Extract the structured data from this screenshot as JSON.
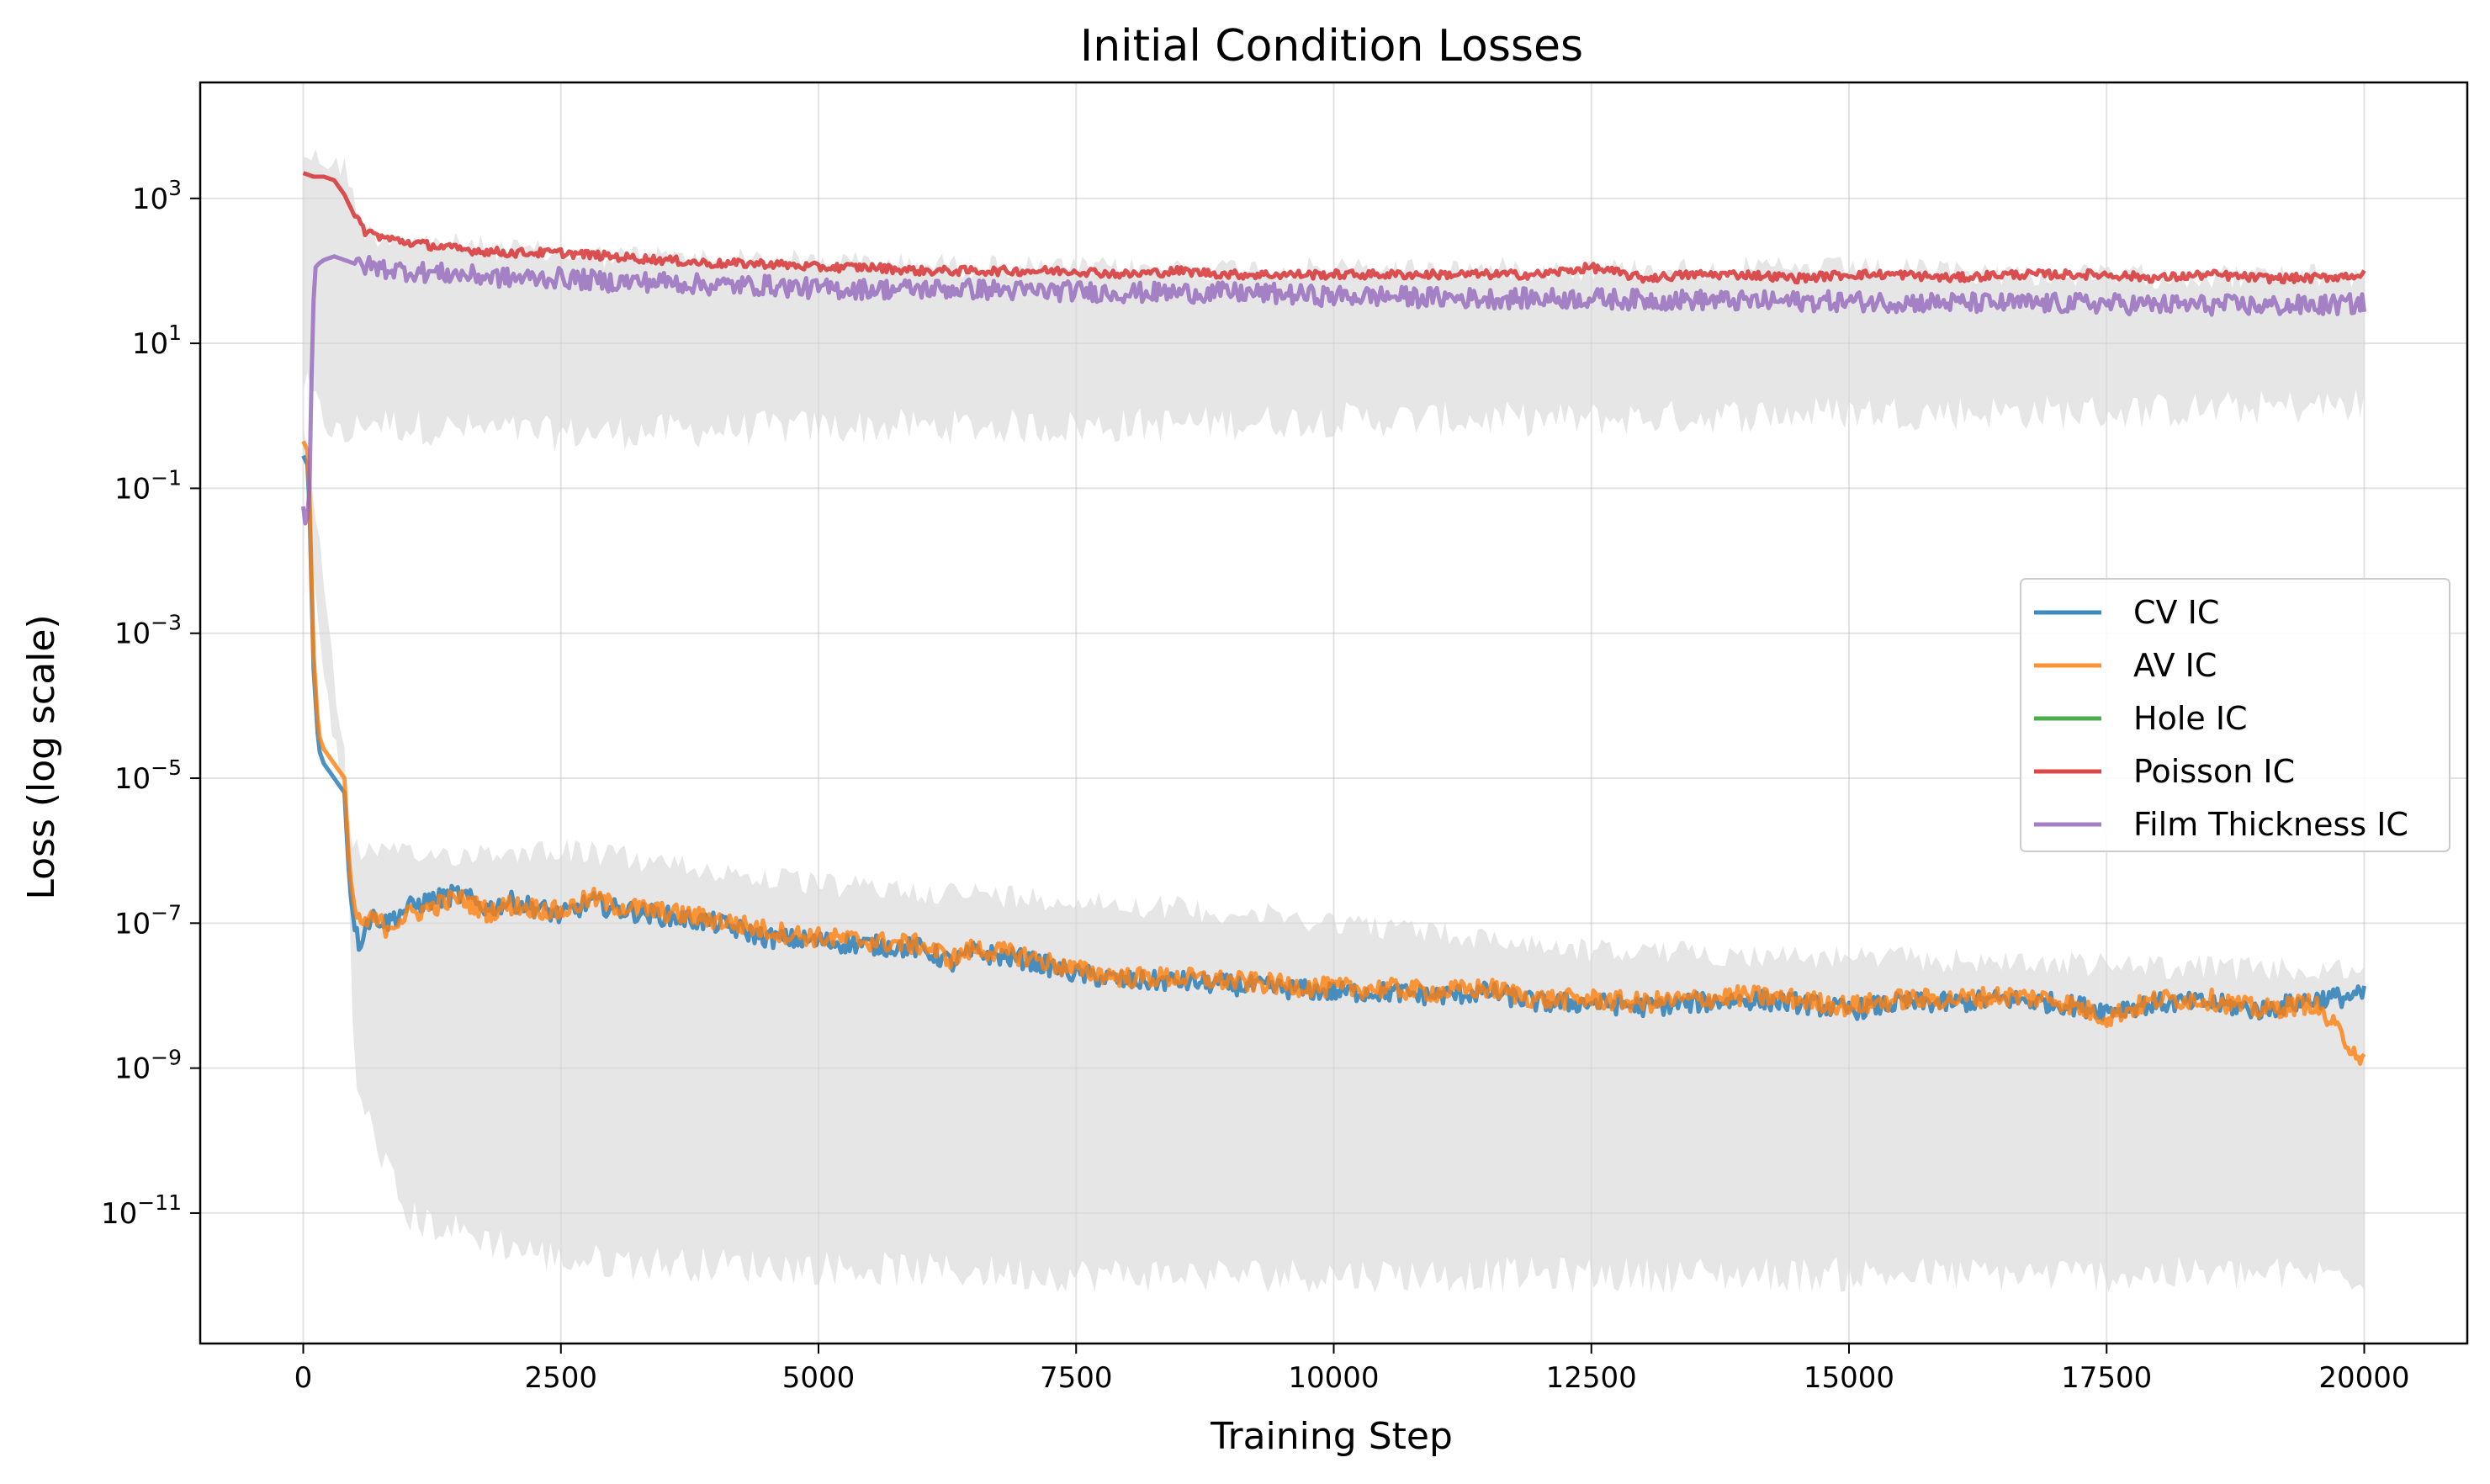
{
  "chart_data": {
    "type": "line",
    "title": "Initial Condition Losses",
    "xlabel": "Training Step",
    "ylabel": "Loss (log scale)",
    "yscale": "log",
    "xlim": [
      -1000,
      21000
    ],
    "ylim_log10": [
      -12.8,
      4.6
    ],
    "grid": true,
    "legend_position": "center-right",
    "xticks": [
      0,
      2500,
      5000,
      7500,
      10000,
      12500,
      15000,
      17500,
      20000
    ],
    "xtick_labels": [
      "0",
      "2500",
      "5000",
      "7500",
      "10000",
      "12500",
      "15000",
      "17500",
      "20000"
    ],
    "yticks_log10": [
      3,
      1,
      -1,
      -3,
      -5,
      -7,
      -9,
      -11
    ],
    "ytick_bases": [
      "10",
      "10",
      "10",
      "10",
      "10",
      "10",
      "10",
      "10"
    ],
    "ytick_exponents": [
      "3",
      "1",
      "−1",
      "−3",
      "−5",
      "−7",
      "−9",
      "−11"
    ],
    "raw_band": {
      "description": "light gray raw per-step losses behind the smoothed curves",
      "color": "#d9d9d9",
      "upper_group": {
        "x": [
          0,
          200,
          400,
          600,
          1000,
          2500,
          5000,
          7500,
          10000,
          12500,
          15000,
          17500,
          20000
        ],
        "low_log10": [
          0.2,
          -0.3,
          -0.6,
          -0.3,
          -0.4,
          -0.5,
          -0.4,
          -0.4,
          -0.3,
          -0.3,
          -0.2,
          -0.2,
          -0.1
        ],
        "high_log10": [
          3.8,
          3.7,
          3.6,
          2.7,
          2.6,
          2.4,
          2.3,
          2.2,
          2.2,
          2.2,
          2.2,
          2.1,
          2.1
        ]
      },
      "lower_group": {
        "x": [
          0,
          200,
          400,
          500,
          1000,
          2500,
          5000,
          7500,
          10000,
          12500,
          15000,
          17500,
          20000
        ],
        "low_log10": [
          -0.4,
          -2.5,
          -5.0,
          -9.5,
          -11.3,
          -11.9,
          -12.0,
          -12.1,
          -12.1,
          -12.1,
          -12.1,
          -12.1,
          -12.1
        ],
        "high_log10": [
          -0.2,
          -3.5,
          -5.0,
          -5.8,
          -5.9,
          -5.8,
          -6.3,
          -6.5,
          -6.8,
          -7.2,
          -7.3,
          -7.4,
          -7.5
        ]
      }
    },
    "series": [
      {
        "name": "CV IC",
        "color": "#1f77b4",
        "x": [
          0,
          50,
          100,
          150,
          200,
          300,
          400,
          450,
          500,
          550,
          600,
          700,
          800,
          1000,
          1200,
          1500,
          1800,
          2000,
          2300,
          2500,
          2800,
          3000,
          3500,
          4000,
          4500,
          5000,
          5500,
          6000,
          6300,
          6500,
          7000,
          7500,
          8000,
          8500,
          9000,
          9500,
          10000,
          10500,
          11000,
          11500,
          12000,
          12500,
          13000,
          13500,
          14000,
          14500,
          15000,
          15500,
          16000,
          16500,
          17000,
          17500,
          18000,
          18500,
          19000,
          19500,
          20000
        ],
        "y_log10": [
          -0.55,
          -0.7,
          -3.5,
          -4.6,
          -4.8,
          -5.0,
          -5.2,
          -6.5,
          -7.1,
          -7.3,
          -7.0,
          -6.9,
          -7.0,
          -6.8,
          -6.7,
          -6.6,
          -6.8,
          -6.7,
          -6.8,
          -6.9,
          -6.7,
          -6.8,
          -6.9,
          -7.0,
          -7.2,
          -7.25,
          -7.3,
          -7.35,
          -7.55,
          -7.4,
          -7.5,
          -7.7,
          -7.8,
          -7.8,
          -7.85,
          -7.9,
          -7.95,
          -7.95,
          -8.0,
          -7.95,
          -8.1,
          -8.1,
          -8.15,
          -8.1,
          -8.05,
          -8.1,
          -8.2,
          -8.1,
          -8.1,
          -8.05,
          -8.1,
          -8.2,
          -8.1,
          -8.1,
          -8.2,
          -8.05,
          -8.0
        ]
      },
      {
        "name": "AV IC",
        "color": "#ff7f0e",
        "x": [
          0,
          50,
          100,
          150,
          200,
          300,
          400,
          450,
          500,
          550,
          600,
          700,
          800,
          1000,
          1200,
          1500,
          1800,
          2000,
          2300,
          2500,
          2800,
          3000,
          3500,
          4000,
          4500,
          5000,
          5500,
          6000,
          6300,
          6500,
          7000,
          7500,
          8000,
          8500,
          9000,
          9500,
          10000,
          10500,
          11000,
          11500,
          12000,
          12500,
          13000,
          13500,
          14000,
          14500,
          15000,
          15500,
          16000,
          16500,
          17000,
          17500,
          18000,
          18500,
          19000,
          19500,
          20000
        ],
        "y_log10": [
          -0.35,
          -0.5,
          -3.3,
          -4.4,
          -4.6,
          -4.8,
          -5.0,
          -6.3,
          -6.8,
          -7.0,
          -7.0,
          -6.95,
          -7.05,
          -6.9,
          -6.8,
          -6.65,
          -6.85,
          -6.75,
          -6.8,
          -6.85,
          -6.65,
          -6.75,
          -6.85,
          -6.95,
          -7.1,
          -7.2,
          -7.25,
          -7.3,
          -7.5,
          -7.35,
          -7.45,
          -7.65,
          -7.75,
          -7.75,
          -7.8,
          -7.85,
          -7.9,
          -7.9,
          -7.95,
          -7.9,
          -8.05,
          -8.05,
          -8.1,
          -8.05,
          -8.0,
          -8.05,
          -8.15,
          -8.05,
          -8.05,
          -8.0,
          -8.05,
          -8.3,
          -8.05,
          -8.05,
          -8.2,
          -8.1,
          -8.9
        ]
      },
      {
        "name": "Hole IC",
        "color": "#2ca02c",
        "x": [],
        "y_log10": []
      },
      {
        "name": "Poisson IC",
        "color": "#d62728",
        "x": [
          0,
          100,
          200,
          300,
          400,
          500,
          600,
          800,
          1000,
          1500,
          2000,
          2500,
          3000,
          3500,
          4000,
          4500,
          5000,
          5500,
          6000,
          6500,
          7000,
          7500,
          8000,
          8500,
          9000,
          9500,
          10000,
          10500,
          11000,
          11500,
          12000,
          12500,
          13000,
          13500,
          14000,
          14500,
          15000,
          15500,
          16000,
          16500,
          17000,
          17500,
          18000,
          18500,
          19000,
          19500,
          20000
        ],
        "y_log10": [
          3.35,
          3.3,
          3.3,
          3.25,
          3.05,
          2.75,
          2.55,
          2.45,
          2.4,
          2.3,
          2.25,
          2.25,
          2.2,
          2.15,
          2.1,
          2.1,
          2.05,
          2.05,
          2.0,
          2.0,
          2.0,
          2.0,
          1.95,
          2.0,
          1.95,
          1.95,
          1.95,
          1.95,
          1.95,
          1.95,
          1.95,
          2.05,
          1.9,
          1.95,
          1.95,
          1.9,
          1.95,
          1.95,
          1.9,
          1.95,
          1.95,
          1.95,
          1.9,
          1.95,
          1.9,
          1.9,
          1.95
        ]
      },
      {
        "name": "Film Thickness IC",
        "color": "#9467bd",
        "x": [
          0,
          30,
          60,
          80,
          100,
          120,
          150,
          200,
          300,
          400,
          500,
          700,
          1000,
          1500,
          2000,
          2500,
          3000,
          3500,
          4000,
          4500,
          5000,
          5500,
          6000,
          6500,
          7000,
          7500,
          8000,
          8500,
          9000,
          9500,
          10000,
          10500,
          11000,
          11500,
          12000,
          12500,
          13000,
          13500,
          14000,
          14500,
          15000,
          15500,
          16000,
          16500,
          17000,
          17500,
          18000,
          18500,
          19000,
          19500,
          20000
        ],
        "y_log10": [
          -1.25,
          -1.6,
          -1.0,
          0.5,
          1.6,
          2.05,
          2.1,
          2.15,
          2.2,
          2.15,
          2.1,
          2.05,
          2.0,
          1.95,
          1.9,
          1.9,
          1.85,
          1.85,
          1.8,
          1.8,
          1.75,
          1.75,
          1.75,
          1.75,
          1.72,
          1.72,
          1.7,
          1.7,
          1.7,
          1.68,
          1.65,
          1.65,
          1.63,
          1.62,
          1.62,
          1.62,
          1.6,
          1.6,
          1.58,
          1.58,
          1.58,
          1.57,
          1.56,
          1.55,
          1.55,
          1.55,
          1.53,
          1.53,
          1.52,
          1.52,
          1.55
        ]
      }
    ],
    "legend": [
      "CV IC",
      "AV IC",
      "Hole IC",
      "Poisson IC",
      "Film Thickness IC"
    ]
  }
}
